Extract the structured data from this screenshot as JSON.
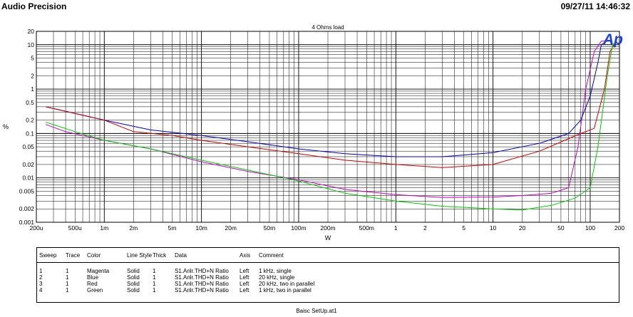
{
  "header": {
    "app_title": "Audio Precision",
    "timestamp": "09/27/11 14:46:32"
  },
  "footer": "Baisc SetUp.at1",
  "chart_data": {
    "type": "line",
    "title": "4 Ohms load",
    "logo": "Ap",
    "xlabel": "W",
    "ylabel": "%",
    "x_scale": "log",
    "y_scale": "log",
    "xlim": [
      0.0002,
      200
    ],
    "ylim": [
      0.001,
      20
    ],
    "grid": true,
    "x_ticks": [
      {
        "v": 0.0002,
        "label": "200u"
      },
      {
        "v": 0.0005,
        "label": "500u"
      },
      {
        "v": 0.001,
        "label": "1m"
      },
      {
        "v": 0.002,
        "label": "2m"
      },
      {
        "v": 0.005,
        "label": "5m"
      },
      {
        "v": 0.01,
        "label": "10m"
      },
      {
        "v": 0.02,
        "label": "20m"
      },
      {
        "v": 0.05,
        "label": "50m"
      },
      {
        "v": 0.1,
        "label": "100m"
      },
      {
        "v": 0.2,
        "label": "200m"
      },
      {
        "v": 0.5,
        "label": "500m"
      },
      {
        "v": 1,
        "label": "1"
      },
      {
        "v": 2,
        "label": "2"
      },
      {
        "v": 5,
        "label": "5"
      },
      {
        "v": 10,
        "label": "10"
      },
      {
        "v": 20,
        "label": "20"
      },
      {
        "v": 50,
        "label": "50"
      },
      {
        "v": 100,
        "label": "100"
      },
      {
        "v": 200,
        "label": "200"
      }
    ],
    "y_ticks": [
      {
        "v": 20,
        "label": "20"
      },
      {
        "v": 10,
        "label": "10"
      },
      {
        "v": 5,
        "label": "5"
      },
      {
        "v": 2,
        "label": "2"
      },
      {
        "v": 1,
        "label": "1"
      },
      {
        "v": 0.5,
        "label": "0.5"
      },
      {
        "v": 0.2,
        "label": "0.2"
      },
      {
        "v": 0.1,
        "label": "0.1"
      },
      {
        "v": 0.05,
        "label": "0.05"
      },
      {
        "v": 0.02,
        "label": "0.02"
      },
      {
        "v": 0.01,
        "label": "0.01"
      },
      {
        "v": 0.005,
        "label": "0.005"
      },
      {
        "v": 0.002,
        "label": "0.002"
      },
      {
        "v": 0.001,
        "label": "0.001"
      }
    ],
    "series": [
      {
        "color": "#cc00cc",
        "points": [
          [
            0.00025,
            0.16
          ],
          [
            0.0004,
            0.11
          ],
          [
            0.001,
            0.07
          ],
          [
            0.003,
            0.045
          ],
          [
            0.01,
            0.023
          ],
          [
            0.03,
            0.014
          ],
          [
            0.1,
            0.009
          ],
          [
            0.3,
            0.0055
          ],
          [
            1,
            0.0042
          ],
          [
            3,
            0.0036
          ],
          [
            10,
            0.0037
          ],
          [
            20,
            0.004
          ],
          [
            40,
            0.0045
          ],
          [
            60,
            0.006
          ],
          [
            75,
            0.05
          ],
          [
            90,
            1
          ],
          [
            110,
            7
          ],
          [
            130,
            12
          ],
          [
            150,
            12
          ]
        ]
      },
      {
        "color": "#0000cc",
        "points": [
          [
            0.00025,
            0.4
          ],
          [
            0.001,
            0.2
          ],
          [
            0.003,
            0.12
          ],
          [
            0.01,
            0.09
          ],
          [
            0.03,
            0.065
          ],
          [
            0.1,
            0.045
          ],
          [
            0.3,
            0.035
          ],
          [
            1,
            0.03
          ],
          [
            3,
            0.03
          ],
          [
            10,
            0.037
          ],
          [
            30,
            0.06
          ],
          [
            60,
            0.1
          ],
          [
            80,
            0.2
          ],
          [
            100,
            0.7
          ],
          [
            120,
            4
          ],
          [
            130,
            10
          ],
          [
            140,
            11
          ]
        ]
      },
      {
        "color": "#cc0000",
        "points": [
          [
            0.00025,
            0.4
          ],
          [
            0.001,
            0.2
          ],
          [
            0.002,
            0.11
          ],
          [
            0.005,
            0.09
          ],
          [
            0.01,
            0.07
          ],
          [
            0.03,
            0.05
          ],
          [
            0.1,
            0.035
          ],
          [
            0.3,
            0.025
          ],
          [
            1,
            0.02
          ],
          [
            3,
            0.017
          ],
          [
            10,
            0.02
          ],
          [
            30,
            0.04
          ],
          [
            80,
            0.1
          ],
          [
            110,
            0.13
          ],
          [
            140,
            1
          ],
          [
            160,
            7
          ],
          [
            175,
            10
          ]
        ]
      },
      {
        "color": "#00cc00",
        "points": [
          [
            0.00025,
            0.18
          ],
          [
            0.0005,
            0.11
          ],
          [
            0.001,
            0.07
          ],
          [
            0.003,
            0.045
          ],
          [
            0.01,
            0.025
          ],
          [
            0.03,
            0.015
          ],
          [
            0.1,
            0.0085
          ],
          [
            0.3,
            0.0045
          ],
          [
            1,
            0.003
          ],
          [
            3,
            0.0023
          ],
          [
            10,
            0.002
          ],
          [
            20,
            0.0019
          ],
          [
            40,
            0.0024
          ],
          [
            70,
            0.0035
          ],
          [
            100,
            0.006
          ],
          [
            120,
            0.05
          ],
          [
            150,
            2
          ],
          [
            170,
            10
          ],
          [
            180,
            11
          ]
        ]
      }
    ],
    "legend": {
      "headers": [
        "Sweep",
        "Trace",
        "Color",
        "Line Style",
        "Thick",
        "Data",
        "Axis",
        "Comment"
      ],
      "rows": [
        [
          "1",
          "1",
          "Magenta",
          "Solid",
          "1",
          "S1.Anlr.THD+N Ratio",
          "Left",
          "1 kHz, single"
        ],
        [
          "2",
          "1",
          "Blue",
          "Solid",
          "1",
          "S1.Anlr.THD+N Ratio",
          "Left",
          "20 kHz, single"
        ],
        [
          "3",
          "1",
          "Red",
          "Solid",
          "1",
          "S1.Anlr.THD+N Ratio",
          "Left",
          "20 kHz, two in parallel"
        ],
        [
          "4",
          "1",
          "Green",
          "Solid",
          "1",
          "S1.Anlr.THD+N Ratio",
          "Left",
          "1 kHz, two in parallel"
        ]
      ]
    }
  }
}
